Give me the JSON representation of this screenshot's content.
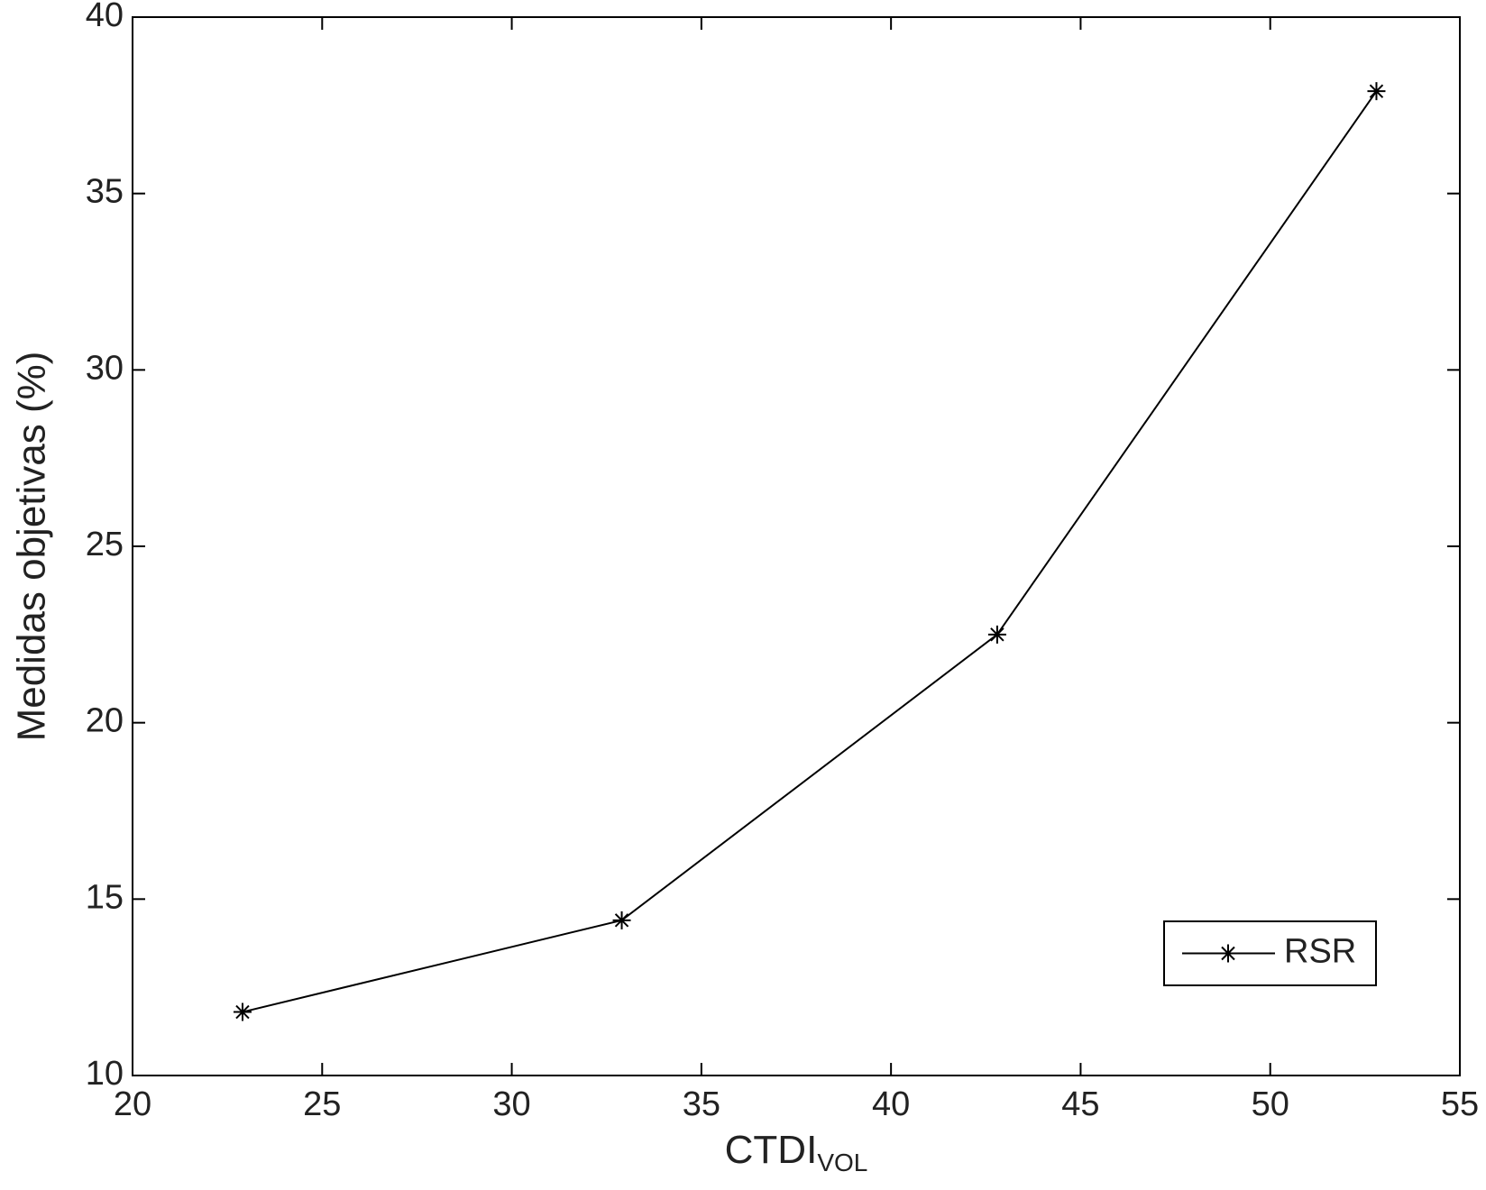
{
  "chart_data": {
    "type": "line",
    "xlabel": {
      "text": "CTDI",
      "subscript": "VOL"
    },
    "ylabel": "Medidas objetivas (%)",
    "x": [
      22.9,
      32.9,
      42.8,
      52.8
    ],
    "series": [
      {
        "name": "RSR",
        "color": "#000000",
        "marker": "asterisk",
        "values": [
          11.8,
          14.4,
          22.5,
          37.9
        ]
      }
    ],
    "xlim": [
      20,
      55
    ],
    "xticks": [
      20,
      25,
      30,
      35,
      40,
      45,
      50,
      55
    ],
    "ylim": [
      10,
      40
    ],
    "yticks": [
      10,
      15,
      20,
      25,
      30,
      35,
      40
    ],
    "grid": false,
    "legend": "lower right"
  }
}
